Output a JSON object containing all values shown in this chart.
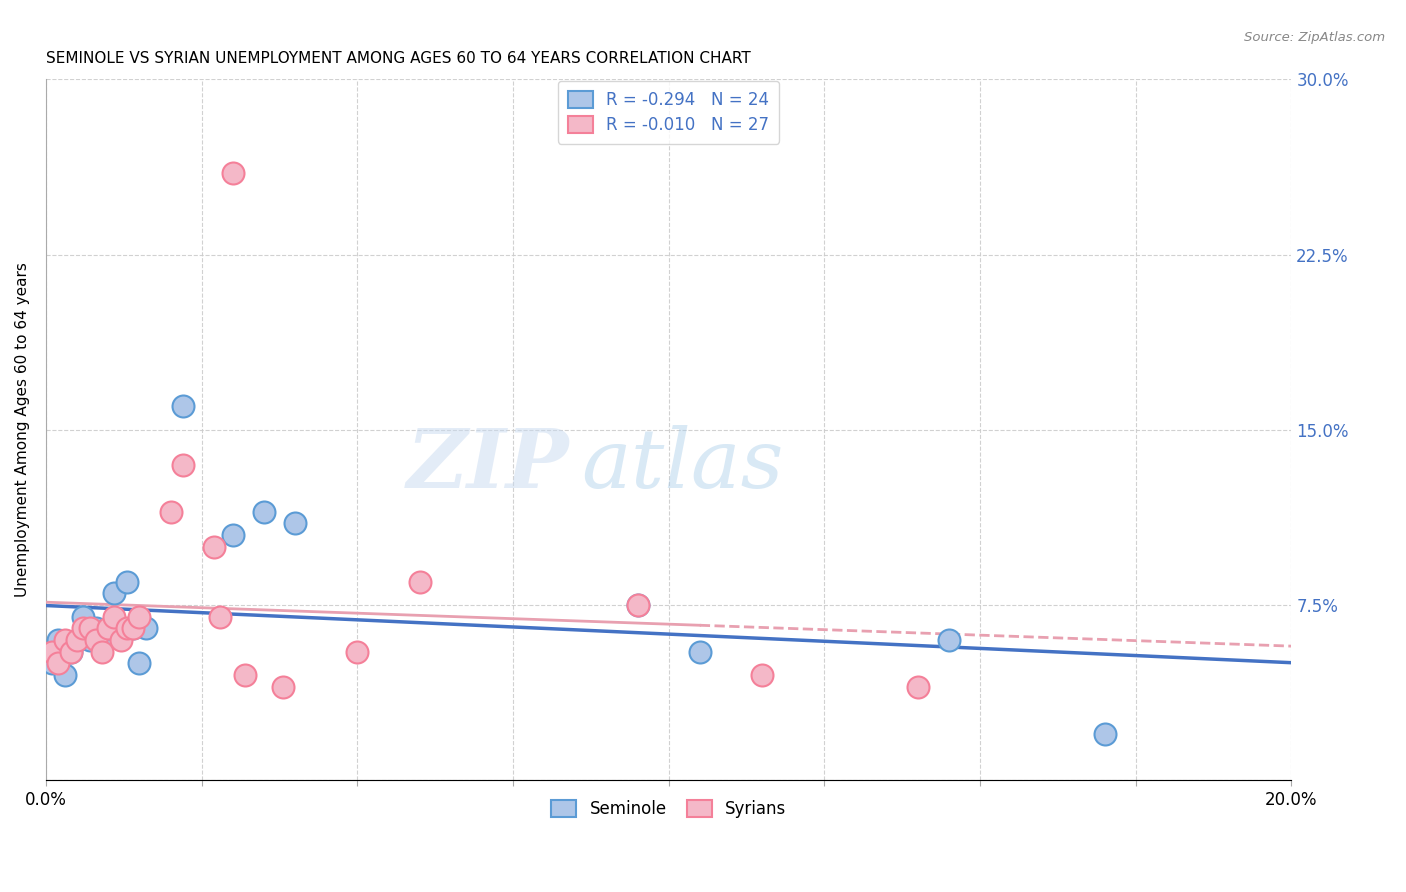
{
  "title": "SEMINOLE VS SYRIAN UNEMPLOYMENT AMONG AGES 60 TO 64 YEARS CORRELATION CHART",
  "source": "Source: ZipAtlas.com",
  "ylabel": "Unemployment Among Ages 60 to 64 years",
  "xlim": [
    0.0,
    0.2
  ],
  "ylim": [
    0.0,
    0.3
  ],
  "yticks_right": [
    0.0,
    0.075,
    0.15,
    0.225,
    0.3
  ],
  "ytick_labels_right": [
    "",
    "7.5%",
    "15.0%",
    "22.5%",
    "30.0%"
  ],
  "seminole_color": "#aec6e8",
  "syrian_color": "#f4b8c8",
  "seminole_edge": "#5b9bd5",
  "syrian_edge": "#f48099",
  "trend_seminole_color": "#4472c4",
  "trend_syrian_color": "#e8a0b0",
  "R_seminole": -0.294,
  "N_seminole": 24,
  "R_syrian": -0.01,
  "N_syrian": 27,
  "seminole_x": [
    0.001,
    0.002,
    0.003,
    0.004,
    0.005,
    0.006,
    0.007,
    0.008,
    0.009,
    0.01,
    0.011,
    0.012,
    0.013,
    0.014,
    0.015,
    0.016,
    0.022,
    0.03,
    0.035,
    0.04,
    0.095,
    0.105,
    0.145,
    0.17
  ],
  "seminole_y": [
    0.05,
    0.06,
    0.045,
    0.055,
    0.06,
    0.07,
    0.06,
    0.065,
    0.06,
    0.065,
    0.08,
    0.065,
    0.085,
    0.065,
    0.05,
    0.065,
    0.16,
    0.105,
    0.115,
    0.11,
    0.075,
    0.055,
    0.06,
    0.02
  ],
  "syrian_x": [
    0.001,
    0.002,
    0.003,
    0.004,
    0.005,
    0.006,
    0.007,
    0.008,
    0.009,
    0.01,
    0.011,
    0.012,
    0.013,
    0.014,
    0.015,
    0.02,
    0.022,
    0.027,
    0.028,
    0.032,
    0.038,
    0.05,
    0.06,
    0.095,
    0.115,
    0.03,
    0.14
  ],
  "syrian_y": [
    0.055,
    0.05,
    0.06,
    0.055,
    0.06,
    0.065,
    0.065,
    0.06,
    0.055,
    0.065,
    0.07,
    0.06,
    0.065,
    0.065,
    0.07,
    0.115,
    0.135,
    0.1,
    0.07,
    0.045,
    0.04,
    0.055,
    0.085,
    0.075,
    0.045,
    0.26,
    0.04
  ],
  "watermark_zip": "ZIP",
  "watermark_atlas": "atlas",
  "background_color": "#ffffff",
  "grid_color": "#cccccc"
}
